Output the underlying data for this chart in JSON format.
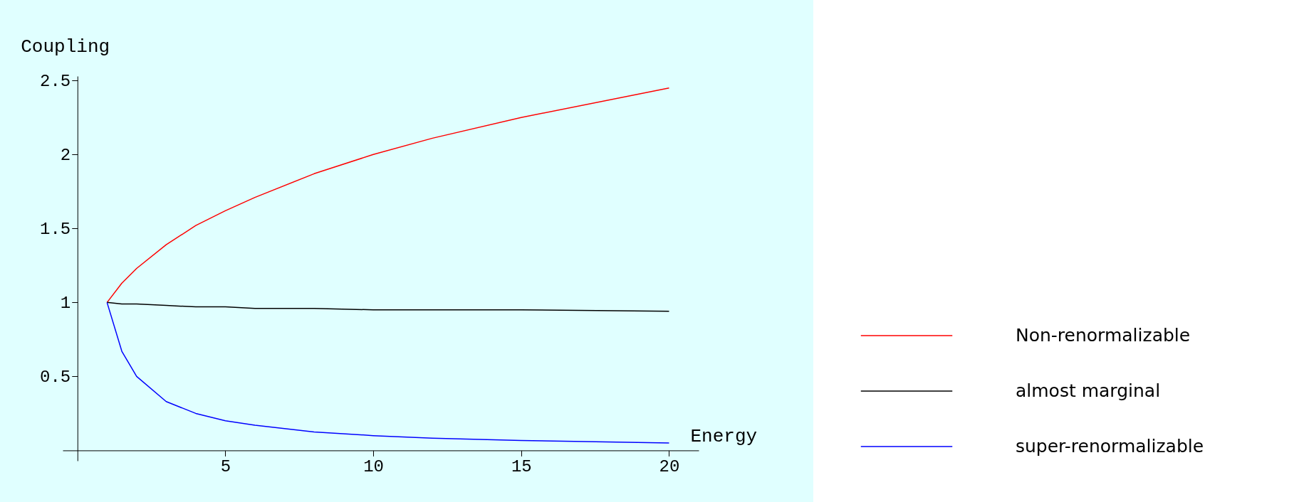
{
  "chart_data": {
    "type": "line",
    "xlabel": "Energy",
    "ylabel": "Coupling",
    "x": [
      1,
      1.5,
      2,
      3,
      4,
      5,
      6,
      8,
      10,
      12,
      15,
      20
    ],
    "series": [
      {
        "name": "Non-renormalizable",
        "color": "#ff0000",
        "values": [
          1,
          1.13,
          1.23,
          1.39,
          1.52,
          1.62,
          1.71,
          1.87,
          2.0,
          2.11,
          2.25,
          2.45
        ]
      },
      {
        "name": "almost marginal",
        "color": "#000000",
        "values": [
          1,
          0.99,
          0.99,
          0.98,
          0.97,
          0.97,
          0.96,
          0.96,
          0.95,
          0.95,
          0.95,
          0.94
        ]
      },
      {
        "name": "super-renormalizable",
        "color": "#0000ff",
        "values": [
          1,
          0.67,
          0.5,
          0.33,
          0.25,
          0.2,
          0.17,
          0.125,
          0.1,
          0.083,
          0.067,
          0.05
        ]
      }
    ],
    "xlim": [
      -0.5,
      21
    ],
    "ylim": [
      -0.07,
      2.53
    ],
    "xticks": [
      5,
      10,
      15,
      20
    ],
    "yticks": [
      0.5,
      1,
      1.5,
      2,
      2.5
    ],
    "grid": false,
    "legend": "right",
    "marker": "none",
    "line_style": "solid"
  }
}
